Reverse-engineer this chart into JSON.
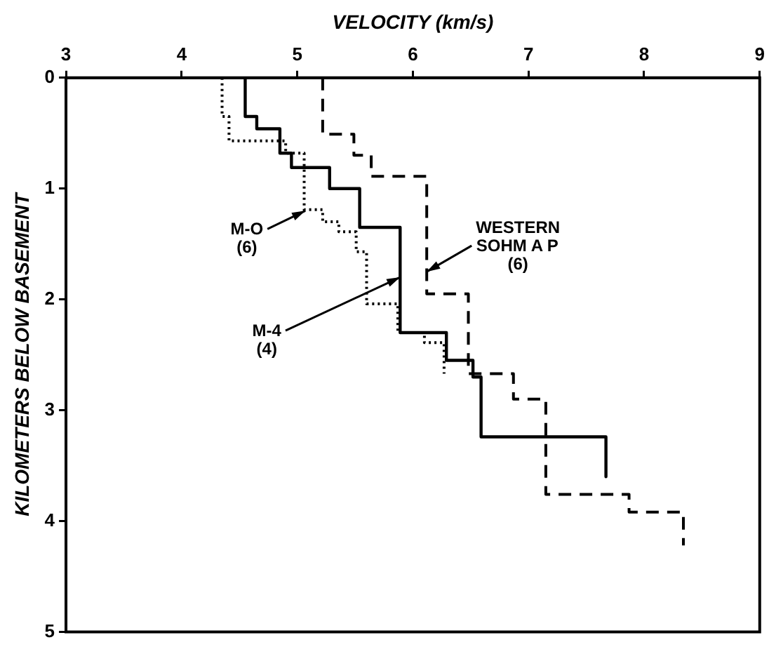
{
  "chart_data": {
    "type": "line",
    "xlabel": "VELOCITY (km/s)",
    "ylabel": "KILOMETERS BELOW BASEMENT",
    "xlim": [
      3,
      9
    ],
    "xticks": [
      3,
      4,
      5,
      6,
      7,
      8,
      9
    ],
    "ylim": [
      5,
      0
    ],
    "yticks": [
      0,
      1,
      2,
      3,
      4,
      5
    ],
    "grid": false,
    "legend": false,
    "marker": "none",
    "series": [
      {
        "color": "#000000",
        "line_style": "solid",
        "x": [
          4.55,
          4.55,
          4.65,
          4.65,
          4.85,
          4.85,
          4.95,
          4.95,
          5.28,
          5.28,
          5.54,
          5.54,
          5.89,
          5.89,
          6.29,
          6.29,
          6.52,
          6.52,
          6.59,
          6.59,
          7.67,
          7.67
        ],
        "values": [
          0,
          0.35,
          0.35,
          0.46,
          0.46,
          0.68,
          0.68,
          0.81,
          0.81,
          1.0,
          1.0,
          1.35,
          1.35,
          2.3,
          2.3,
          2.55,
          2.55,
          2.7,
          2.7,
          3.24,
          3.24,
          3.6
        ]
      },
      {
        "color": "#000000",
        "line_style": "dotted",
        "x": [
          4.35,
          4.35,
          4.41,
          4.41,
          4.9,
          4.9,
          5.06,
          5.06,
          5.22,
          5.22,
          5.36,
          5.36,
          5.51,
          5.51,
          5.6,
          5.6,
          5.87,
          5.87,
          6.1,
          6.1,
          6.27,
          6.27
        ],
        "values": [
          0,
          0.35,
          0.35,
          0.57,
          0.57,
          0.68,
          0.68,
          1.19,
          1.19,
          1.3,
          1.3,
          1.39,
          1.39,
          1.57,
          1.57,
          2.04,
          2.04,
          2.3,
          2.3,
          2.39,
          2.39,
          2.67
        ]
      },
      {
        "color": "#000000",
        "line_style": "dashed",
        "x": [
          5.22,
          5.22,
          5.49,
          5.49,
          5.64,
          5.64,
          6.12,
          6.12,
          6.48,
          6.48,
          6.87,
          6.87,
          7.15,
          7.15,
          7.87,
          7.87,
          8.34,
          8.34
        ],
        "values": [
          0,
          0.51,
          0.51,
          0.7,
          0.7,
          0.89,
          0.89,
          1.95,
          1.95,
          2.67,
          2.67,
          2.9,
          2.9,
          3.76,
          3.76,
          3.92,
          3.92,
          4.22
        ]
      }
    ],
    "annotations": [
      {
        "text": "M-O\n(6)",
        "x": 5.07,
        "y": 1.2
      },
      {
        "text": "M-4\n(4)",
        "x": 5.89,
        "y": 1.8
      },
      {
        "text": "WESTERN\nSOHM A P\n(6)",
        "x": 6.12,
        "y": 1.75
      }
    ]
  }
}
